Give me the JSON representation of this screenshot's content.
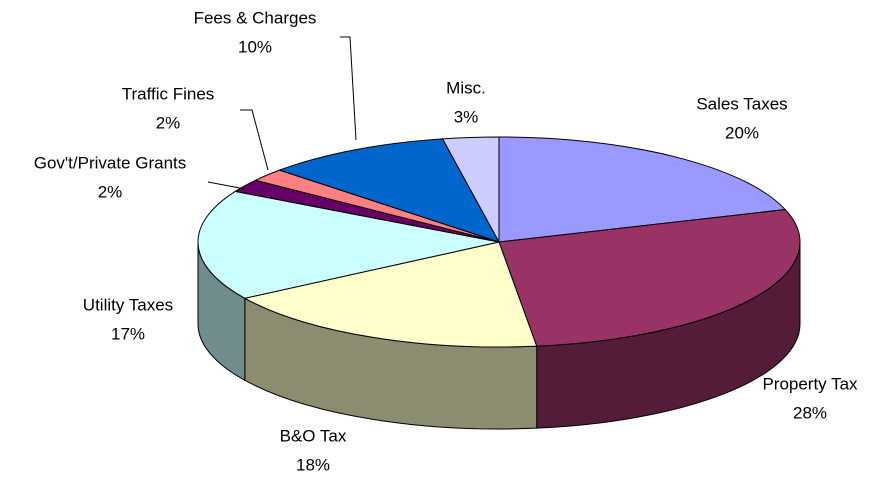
{
  "chart_data": {
    "type": "pie3d",
    "categories": [
      "Sales Taxes",
      "Property Tax",
      "B&O Tax",
      "Utility Taxes",
      "Gov't/Private Grants",
      "Traffic Fines",
      "Fees & Charges",
      "Misc."
    ],
    "values": [
      20,
      28,
      18,
      17,
      2,
      2,
      10,
      3
    ],
    "value_labels": [
      "20%",
      "28%",
      "18%",
      "17%",
      "2%",
      "2%",
      "10%",
      "3%"
    ],
    "colors": [
      "#9999ff",
      "#993366",
      "#ffffcc",
      "#ccffff",
      "#660066",
      "#ff8080",
      "#0066cc",
      "#ccccff"
    ]
  }
}
